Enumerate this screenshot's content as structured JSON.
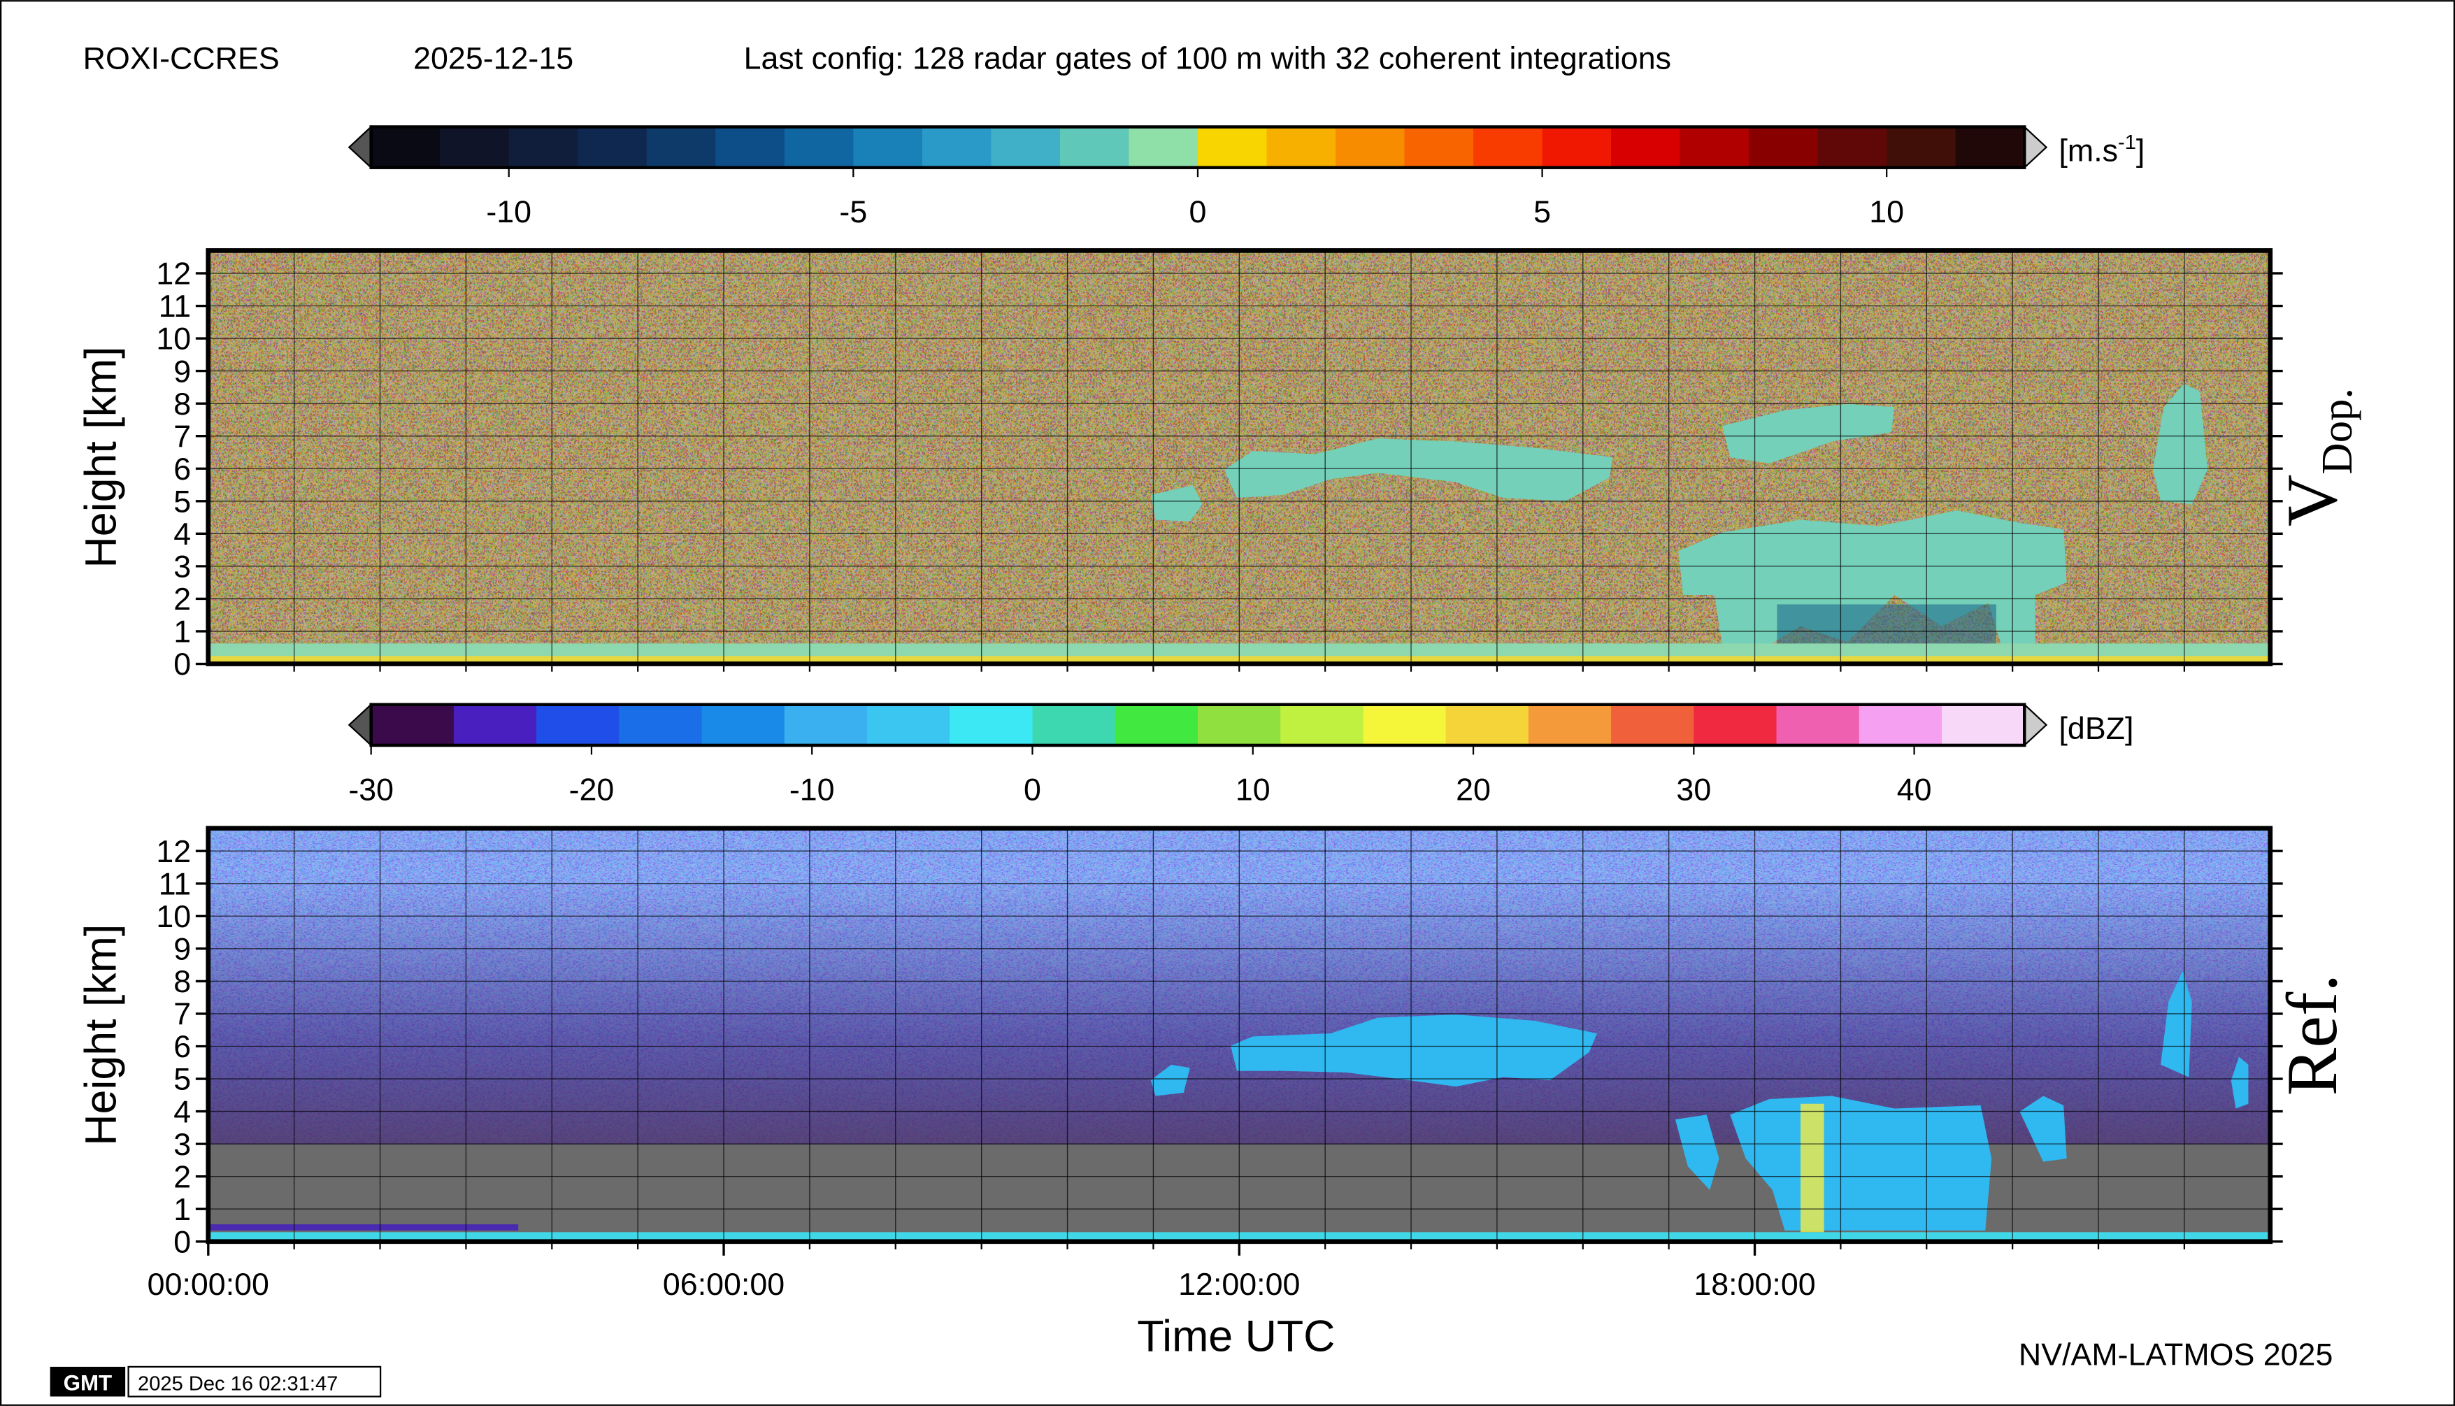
{
  "header": {
    "station": "ROXI-CCRES",
    "date": "2025-12-15",
    "config": "Last config: 128 radar gates of 100 m with 32 coherent integrations"
  },
  "chart_data": [
    {
      "type": "heatmap",
      "ylabel": "Height [km]",
      "panel_label": "V",
      "panel_label_sub": "Dop.",
      "xlim": [
        0,
        24
      ],
      "xgrid_step": 1,
      "ylim": [
        0,
        12.7
      ],
      "yticks": [
        0,
        1,
        2,
        3,
        4,
        5,
        6,
        7,
        8,
        9,
        10,
        11,
        12
      ],
      "grid": true,
      "colorbar": {
        "clim": [
          -12,
          12
        ],
        "ticks": [
          -10,
          -5,
          0,
          5,
          10
        ],
        "unit": "[m.s",
        "unit_sup": "-1",
        "unit_close": "]",
        "colors": [
          "#0a0a14",
          "#101428",
          "#101e3c",
          "#0f2850",
          "#0e3a6a",
          "#0e4e88",
          "#1066a0",
          "#1a80b8",
          "#2a9ac8",
          "#40b0c8",
          "#60c8b8",
          "#8ee0a8",
          "#f8d400",
          "#f8b000",
          "#f88c00",
          "#f86400",
          "#f83c00",
          "#f01800",
          "#d80000",
          "#b00000",
          "#880000",
          "#600808",
          "#401008",
          "#200808"
        ]
      }
    },
    {
      "type": "heatmap",
      "ylabel": "Height [km]",
      "panel_label": "Ref.",
      "xlabel": "Time UTC",
      "xlim": [
        0,
        24
      ],
      "xgrid_step": 1,
      "xticks": [
        {
          "value": 0,
          "label": "00:00:00"
        },
        {
          "value": 6,
          "label": "06:00:00"
        },
        {
          "value": 12,
          "label": "12:00:00"
        },
        {
          "value": 18,
          "label": "18:00:00"
        }
      ],
      "ylim": [
        0,
        12.7
      ],
      "yticks": [
        0,
        1,
        2,
        3,
        4,
        5,
        6,
        7,
        8,
        9,
        10,
        11,
        12
      ],
      "grid": true,
      "colorbar": {
        "clim": [
          -30,
          45
        ],
        "ticks": [
          -30,
          -20,
          -10,
          0,
          10,
          20,
          30,
          40
        ],
        "unit": "[dBZ]",
        "colors": [
          "#3a0a4a",
          "#4a1fc0",
          "#1f4fe8",
          "#1a6ee8",
          "#1a8ae8",
          "#3ab0f0",
          "#3ac6f0",
          "#3de8f5",
          "#3dd8b0",
          "#40e840",
          "#90e040",
          "#c0f040",
          "#f5f53a",
          "#f5d43a",
          "#f59a3a",
          "#f0603a",
          "#f02840",
          "#f060b0",
          "#f5a0f0",
          "#f8d8f8"
        ]
      }
    }
  ],
  "footer": {
    "credit": "NV/AM-LATMOS 2025",
    "logo": "GMT",
    "timestamp": "2025 Dec 16 02:31:47"
  }
}
